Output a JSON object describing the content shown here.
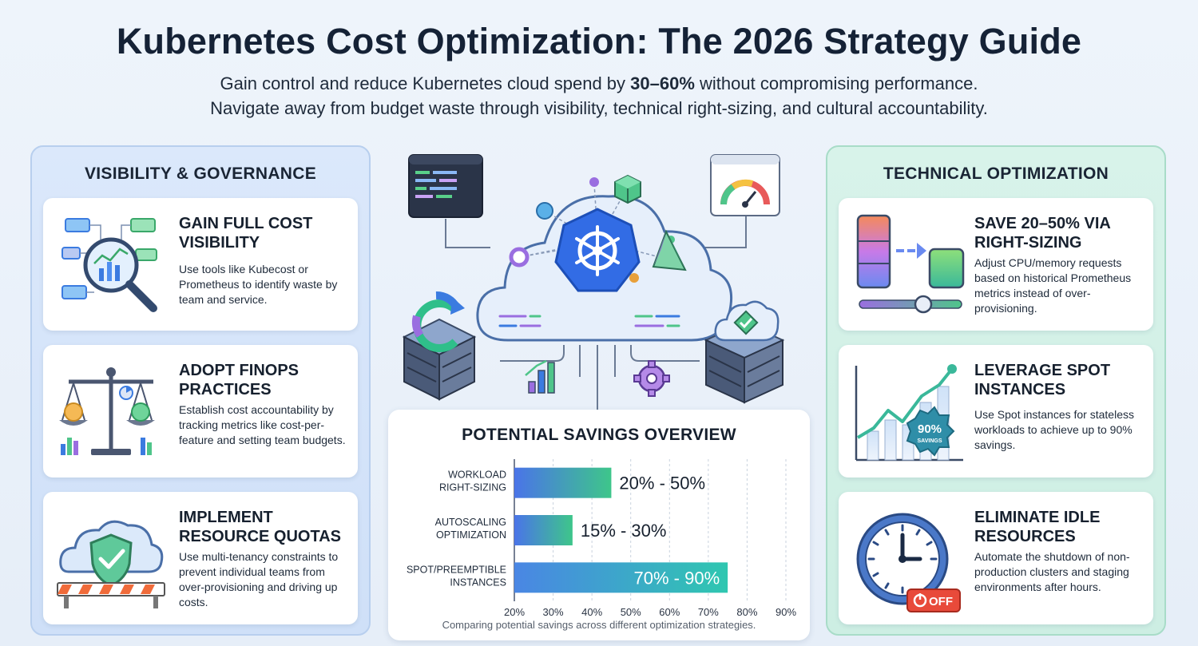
{
  "header": {
    "title": "Kubernetes Cost Optimization: The 2026 Strategy Guide",
    "subtitle_1_pre": "Gain control and reduce Kubernetes cloud spend by ",
    "subtitle_1_bold": "30–60%",
    "subtitle_1_post": " without compromising performance.",
    "subtitle_2": "Navigate away from budget waste through visibility, technical right-sizing, and cultural accountability."
  },
  "left_panel": {
    "title": "VISIBILITY & GOVERNANCE",
    "cards": [
      {
        "title": "GAIN FULL COST VISIBILITY",
        "body": "Use tools like Kubecost or Prometheus to identify waste by team and service.",
        "icon": "magnifier-dashboard-icon"
      },
      {
        "title": "ADOPT FINOPS PRACTICES",
        "body": "Establish cost accountability by tracking metrics like cost-per-feature and setting team budgets.",
        "icon": "balance-scale-icon"
      },
      {
        "title": "IMPLEMENT RESOURCE QUOTAS",
        "body": "Use multi-tenancy constraints to prevent individual teams from over-provisioning and driving up costs.",
        "icon": "shield-cloud-icon"
      }
    ]
  },
  "right_panel": {
    "title": "TECHNICAL OPTIMIZATION",
    "cards": [
      {
        "title": "SAVE 20–50% VIA RIGHT-SIZING",
        "body": "Adjust CPU/memory requests based on historical Prometheus metrics instead of over-provisioning.",
        "icon": "resize-slider-icon"
      },
      {
        "title": "LEVERAGE SPOT INSTANCES",
        "body": "Use Spot instances for stateless workloads to achieve up to 90% savings.",
        "icon": "growth-chart-badge-icon",
        "badge_value": "90%",
        "badge_label": "SAVINGS"
      },
      {
        "title": "ELIMINATE IDLE RESOURCES",
        "body": "Automate the shutdown of non-production clusters and staging environments after hours.",
        "icon": "clock-off-icon",
        "off_label": "OFF"
      }
    ]
  },
  "colors": {
    "accent_blue": "#3b7be0",
    "accent_green": "#4fc58a",
    "accent_teal": "#2fbfb0",
    "kubernetes_blue": "#326ce5"
  },
  "chart_data": {
    "type": "bar",
    "orientation": "horizontal",
    "title": "POTENTIAL SAVINGS OVERVIEW",
    "caption": "Comparing potential savings across different optimization strategies.",
    "categories": [
      [
        "WORKLOAD",
        "RIGHT-SIZING"
      ],
      [
        "AUTOSCALING",
        "OPTIMIZATION"
      ],
      [
        "SPOT/PREEMPTIBLE",
        "INSTANCES"
      ]
    ],
    "ranges": [
      [
        20,
        50
      ],
      [
        15,
        30
      ],
      [
        70,
        90
      ]
    ],
    "range_labels": [
      "20% - 50%",
      "15% - 30%",
      "70% - 90%"
    ],
    "bar_end_values": [
      45,
      35,
      75
    ],
    "xlim": [
      20,
      90
    ],
    "x_ticks": [
      20,
      30,
      40,
      50,
      60,
      70,
      80,
      90
    ],
    "x_tick_labels": [
      "20%",
      "30%",
      "40%",
      "50%",
      "60%",
      "70%",
      "80%",
      "90%"
    ],
    "grid": "vertical dashed"
  }
}
